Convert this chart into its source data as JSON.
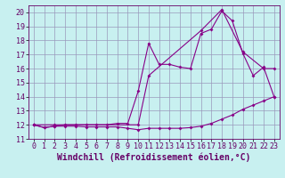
{
  "xlabel": "Windchill (Refroidissement éolien,°C)",
  "xlim": [
    -0.5,
    23.5
  ],
  "ylim": [
    11,
    20.5
  ],
  "xticks": [
    0,
    1,
    2,
    3,
    4,
    5,
    6,
    7,
    8,
    9,
    10,
    11,
    12,
    13,
    14,
    15,
    16,
    17,
    18,
    19,
    20,
    21,
    22,
    23
  ],
  "yticks": [
    11,
    12,
    13,
    14,
    15,
    16,
    17,
    18,
    19,
    20
  ],
  "background_color": "#c8f0f0",
  "grid_color": "#9999bb",
  "line_color": "#880088",
  "line1_x": [
    0,
    1,
    2,
    3,
    4,
    5,
    6,
    7,
    8,
    9,
    10,
    11,
    12,
    13,
    14,
    15,
    16,
    17,
    18,
    19,
    20,
    21,
    22,
    23
  ],
  "line1_y": [
    12.0,
    11.8,
    11.9,
    11.9,
    11.9,
    11.85,
    11.85,
    11.85,
    11.85,
    11.75,
    11.65,
    11.75,
    11.75,
    11.75,
    11.75,
    11.8,
    11.9,
    12.1,
    12.4,
    12.7,
    13.1,
    13.4,
    13.7,
    14.0
  ],
  "line2_x": [
    0,
    1,
    2,
    3,
    4,
    5,
    6,
    7,
    8,
    9,
    10,
    11,
    12,
    13,
    14,
    15,
    16,
    17,
    18,
    19,
    20,
    21,
    22,
    23
  ],
  "line2_y": [
    12.0,
    11.8,
    11.9,
    12.0,
    12.0,
    12.0,
    12.0,
    12.0,
    12.1,
    12.1,
    14.4,
    17.8,
    16.3,
    16.3,
    16.1,
    16.0,
    18.5,
    18.8,
    20.1,
    19.4,
    17.1,
    15.5,
    16.1,
    14.0
  ],
  "line3_x": [
    0,
    2,
    10,
    11,
    16,
    18,
    20,
    22,
    23
  ],
  "line3_y": [
    12.0,
    12.0,
    12.0,
    15.5,
    18.7,
    20.2,
    17.2,
    16.0,
    16.0
  ],
  "font_color": "#660066",
  "tick_fontsize": 6.0,
  "xlabel_fontsize": 7.0
}
